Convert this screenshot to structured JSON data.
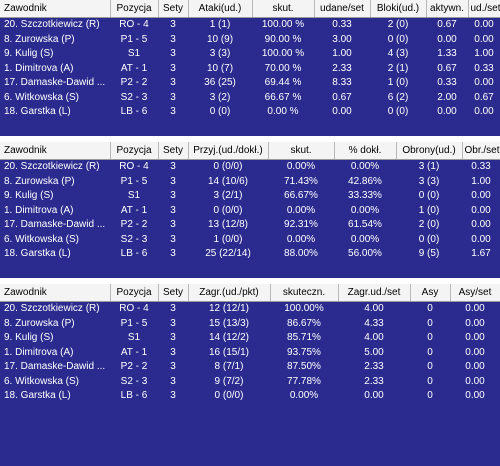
{
  "attack": {
    "headers": [
      "Zawodnik",
      "Pozycja",
      "Sety",
      "Ataki(ud.)",
      "skut.",
      "udane/set",
      "Bloki(ud.)",
      "aktywn.",
      "ud./set"
    ],
    "rows": [
      [
        "20. Szczotkiewicz (R)",
        "RO - 4",
        "3",
        "1 (1)",
        "100.00 %",
        "0.33",
        "2 (0)",
        "0.67",
        "0.00"
      ],
      [
        "8. Zurowska (P)",
        "P1 - 5",
        "3",
        "10 (9)",
        "90.00 %",
        "3.00",
        "0 (0)",
        "0.00",
        "0.00"
      ],
      [
        "9. Kulig (S)",
        "S1",
        "3",
        "3 (3)",
        "100.00 %",
        "1.00",
        "4 (3)",
        "1.33",
        "1.00"
      ],
      [
        "1. Dimitrova (A)",
        "AT - 1",
        "3",
        "10 (7)",
        "70.00 %",
        "2.33",
        "2 (1)",
        "0.67",
        "0.33"
      ],
      [
        "17. Damaske-Dawid ...",
        "P2 - 2",
        "3",
        "36 (25)",
        "69.44 %",
        "8.33",
        "1 (0)",
        "0.33",
        "0.00"
      ],
      [
        "6. Witkowska (S)",
        "S2 - 3",
        "3",
        "3 (2)",
        "66.67 %",
        "0.67",
        "6 (2)",
        "2.00",
        "0.67"
      ],
      [
        "18. Garstka (L)",
        "LB - 6",
        "3",
        "0 (0)",
        "0.00 %",
        "0.00",
        "0 (0)",
        "0.00",
        "0.00"
      ]
    ]
  },
  "reception": {
    "headers": [
      "Zawodnik",
      "Pozycja",
      "Sety",
      "Przyj.(ud./dokł.)",
      "skut.",
      "% dokł.",
      "Obrony(ud.)",
      "Obr./set"
    ],
    "rows": [
      [
        "20. Szczotkiewicz (R)",
        "RO - 4",
        "3",
        "0 (0/0)",
        "0.00%",
        "0.00%",
        "3 (1)",
        "0.33"
      ],
      [
        "8. Zurowska (P)",
        "P1 - 5",
        "3",
        "14 (10/6)",
        "71.43%",
        "42.86%",
        "3 (3)",
        "1.00"
      ],
      [
        "9. Kulig (S)",
        "S1",
        "3",
        "3 (2/1)",
        "66.67%",
        "33.33%",
        "0 (0)",
        "0.00"
      ],
      [
        "1. Dimitrova (A)",
        "AT - 1",
        "3",
        "0 (0/0)",
        "0.00%",
        "0.00%",
        "1 (0)",
        "0.00"
      ],
      [
        "17. Damaske-Dawid ...",
        "P2 - 2",
        "3",
        "13 (12/8)",
        "92.31%",
        "61.54%",
        "2 (0)",
        "0.00"
      ],
      [
        "6. Witkowska (S)",
        "S2 - 3",
        "3",
        "1 (0/0)",
        "0.00%",
        "0.00%",
        "0 (0)",
        "0.00"
      ],
      [
        "18. Garstka (L)",
        "LB - 6",
        "3",
        "25 (22/14)",
        "88.00%",
        "56.00%",
        "9 (5)",
        "1.67"
      ]
    ]
  },
  "serve": {
    "headers": [
      "Zawodnik",
      "Pozycja",
      "Sety",
      "Zagr.(ud./pkt)",
      "skuteczn.",
      "Zagr.ud./set",
      "Asy",
      "Asy/set"
    ],
    "rows": [
      [
        "20. Szczotkiewicz (R)",
        "RO - 4",
        "3",
        "12 (12/1)",
        "100.00%",
        "4.00",
        "0",
        "0.00"
      ],
      [
        "8. Zurowska (P)",
        "P1 - 5",
        "3",
        "15 (13/3)",
        "86.67%",
        "4.33",
        "0",
        "0.00"
      ],
      [
        "9. Kulig (S)",
        "S1",
        "3",
        "14 (12/2)",
        "85.71%",
        "4.00",
        "0",
        "0.00"
      ],
      [
        "1. Dimitrova (A)",
        "AT - 1",
        "3",
        "16 (15/1)",
        "93.75%",
        "5.00",
        "0",
        "0.00"
      ],
      [
        "17. Damaske-Dawid ...",
        "P2 - 2",
        "3",
        "8 (7/1)",
        "87.50%",
        "2.33",
        "0",
        "0.00"
      ],
      [
        "6. Witkowska (S)",
        "S2 - 3",
        "3",
        "9 (7/2)",
        "77.78%",
        "2.33",
        "0",
        "0.00"
      ],
      [
        "18. Garstka (L)",
        "LB - 6",
        "3",
        "0 (0/0)",
        "0.00%",
        "0.00",
        "0",
        "0.00"
      ]
    ]
  }
}
